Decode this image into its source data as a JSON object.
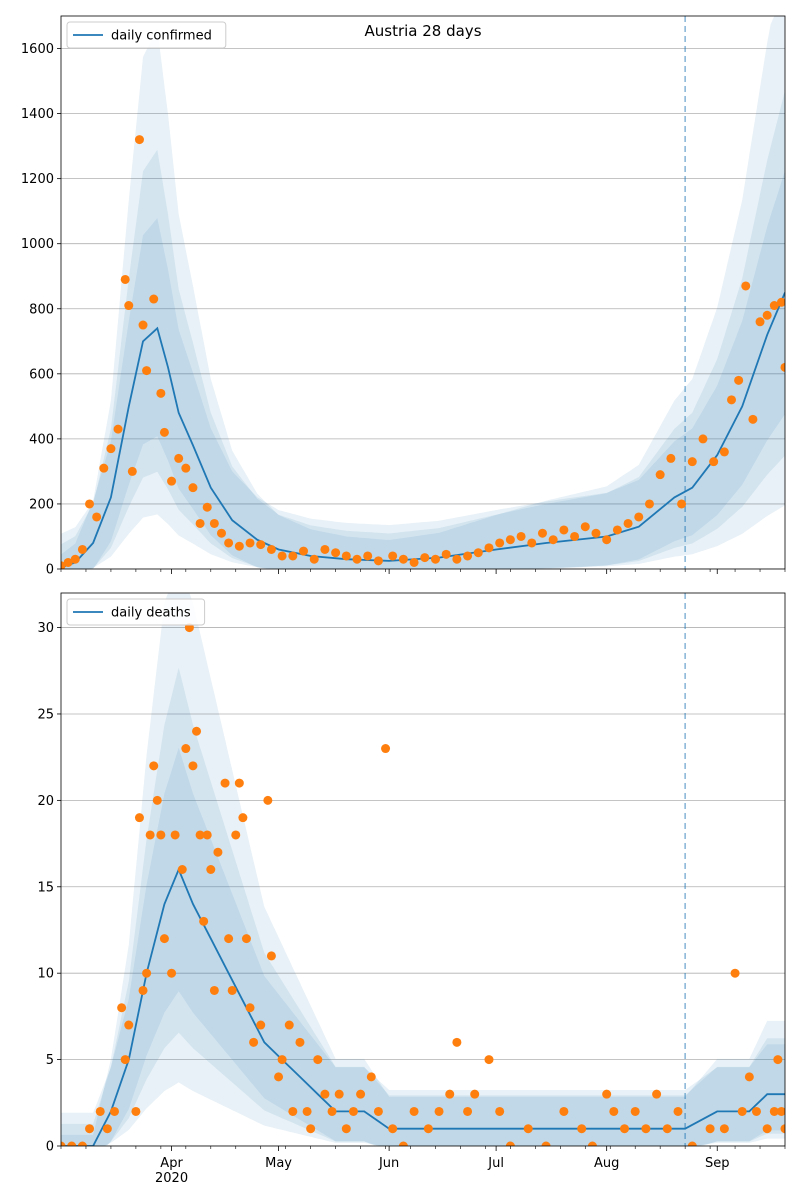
{
  "chart_data": [
    {
      "type": "line",
      "title": "Austria 28 days",
      "xlabel": "",
      "ylabel": "",
      "x_ticks": [
        "Apr\n2020",
        "May",
        "Jun",
        "Jul",
        "Aug",
        "Sep"
      ],
      "x_range": [
        "2020-03-01",
        "2020-09-20"
      ],
      "ylim": [
        0,
        1700
      ],
      "y_ticks": [
        0,
        200,
        400,
        600,
        800,
        1000,
        1200,
        1400,
        1600
      ],
      "grid": "horizontal",
      "legend_position": "top-left",
      "forecast_marker_date": "2020-08-23",
      "series": [
        {
          "name": "daily confirmed",
          "kind": "line",
          "color": "#1f77b4",
          "points": [
            [
              "2020-03-01",
              5
            ],
            [
              "2020-03-05",
              20
            ],
            [
              "2020-03-10",
              80
            ],
            [
              "2020-03-15",
              220
            ],
            [
              "2020-03-20",
              500
            ],
            [
              "2020-03-24",
              700
            ],
            [
              "2020-03-28",
              740
            ],
            [
              "2020-03-31",
              620
            ],
            [
              "2020-04-03",
              480
            ],
            [
              "2020-04-07",
              380
            ],
            [
              "2020-04-12",
              250
            ],
            [
              "2020-04-18",
              150
            ],
            [
              "2020-04-25",
              90
            ],
            [
              "2020-05-01",
              60
            ],
            [
              "2020-05-10",
              40
            ],
            [
              "2020-05-20",
              30
            ],
            [
              "2020-06-01",
              25
            ],
            [
              "2020-06-15",
              35
            ],
            [
              "2020-07-01",
              60
            ],
            [
              "2020-07-15",
              80
            ],
            [
              "2020-08-01",
              100
            ],
            [
              "2020-08-10",
              130
            ],
            [
              "2020-08-20",
              220
            ],
            [
              "2020-08-25",
              250
            ],
            [
              "2020-09-01",
              350
            ],
            [
              "2020-09-08",
              500
            ],
            [
              "2020-09-15",
              720
            ],
            [
              "2020-09-20",
              850
            ]
          ]
        },
        {
          "name": "",
          "kind": "scatter",
          "color": "#ff7f0e",
          "points": [
            [
              "2020-03-01",
              10
            ],
            [
              "2020-03-03",
              20
            ],
            [
              "2020-03-05",
              30
            ],
            [
              "2020-03-07",
              60
            ],
            [
              "2020-03-09",
              200
            ],
            [
              "2020-03-11",
              160
            ],
            [
              "2020-03-13",
              310
            ],
            [
              "2020-03-15",
              370
            ],
            [
              "2020-03-17",
              430
            ],
            [
              "2020-03-19",
              890
            ],
            [
              "2020-03-20",
              810
            ],
            [
              "2020-03-21",
              300
            ],
            [
              "2020-03-23",
              1320
            ],
            [
              "2020-03-24",
              750
            ],
            [
              "2020-03-25",
              610
            ],
            [
              "2020-03-27",
              830
            ],
            [
              "2020-03-29",
              540
            ],
            [
              "2020-03-30",
              420
            ],
            [
              "2020-04-01",
              270
            ],
            [
              "2020-04-03",
              340
            ],
            [
              "2020-04-05",
              310
            ],
            [
              "2020-04-07",
              250
            ],
            [
              "2020-04-09",
              140
            ],
            [
              "2020-04-11",
              190
            ],
            [
              "2020-04-13",
              140
            ],
            [
              "2020-04-15",
              110
            ],
            [
              "2020-04-17",
              80
            ],
            [
              "2020-04-20",
              70
            ],
            [
              "2020-04-23",
              80
            ],
            [
              "2020-04-26",
              75
            ],
            [
              "2020-04-29",
              60
            ],
            [
              "2020-05-02",
              40
            ],
            [
              "2020-05-05",
              40
            ],
            [
              "2020-05-08",
              55
            ],
            [
              "2020-05-11",
              30
            ],
            [
              "2020-05-14",
              60
            ],
            [
              "2020-05-17",
              50
            ],
            [
              "2020-05-20",
              40
            ],
            [
              "2020-05-23",
              30
            ],
            [
              "2020-05-26",
              40
            ],
            [
              "2020-05-29",
              25
            ],
            [
              "2020-06-02",
              40
            ],
            [
              "2020-06-05",
              30
            ],
            [
              "2020-06-08",
              20
            ],
            [
              "2020-06-11",
              35
            ],
            [
              "2020-06-14",
              30
            ],
            [
              "2020-06-17",
              45
            ],
            [
              "2020-06-20",
              30
            ],
            [
              "2020-06-23",
              40
            ],
            [
              "2020-06-26",
              50
            ],
            [
              "2020-06-29",
              65
            ],
            [
              "2020-07-02",
              80
            ],
            [
              "2020-07-05",
              90
            ],
            [
              "2020-07-08",
              100
            ],
            [
              "2020-07-11",
              80
            ],
            [
              "2020-07-14",
              110
            ],
            [
              "2020-07-17",
              90
            ],
            [
              "2020-07-20",
              120
            ],
            [
              "2020-07-23",
              100
            ],
            [
              "2020-07-26",
              130
            ],
            [
              "2020-07-29",
              110
            ],
            [
              "2020-08-01",
              90
            ],
            [
              "2020-08-04",
              120
            ],
            [
              "2020-08-07",
              140
            ],
            [
              "2020-08-10",
              160
            ],
            [
              "2020-08-13",
              200
            ],
            [
              "2020-08-16",
              290
            ],
            [
              "2020-08-19",
              340
            ],
            [
              "2020-08-22",
              200
            ],
            [
              "2020-08-25",
              330
            ],
            [
              "2020-08-28",
              400
            ],
            [
              "2020-08-31",
              330
            ],
            [
              "2020-09-03",
              360
            ],
            [
              "2020-09-05",
              520
            ],
            [
              "2020-09-07",
              580
            ],
            [
              "2020-09-09",
              870
            ],
            [
              "2020-09-11",
              460
            ],
            [
              "2020-09-13",
              760
            ],
            [
              "2020-09-15",
              780
            ],
            [
              "2020-09-17",
              810
            ],
            [
              "2020-09-19",
              820
            ],
            [
              "2020-09-20",
              620
            ]
          ]
        }
      ]
    },
    {
      "type": "line",
      "title": "",
      "xlabel": "",
      "ylabel": "",
      "x_ticks": [
        "Apr\n2020",
        "May",
        "Jun",
        "Jul",
        "Aug",
        "Sep"
      ],
      "x_range": [
        "2020-03-01",
        "2020-09-20"
      ],
      "ylim": [
        0,
        32
      ],
      "y_ticks": [
        0,
        5,
        10,
        15,
        20,
        25,
        30
      ],
      "grid": "horizontal",
      "legend_position": "top-left",
      "forecast_marker_date": "2020-08-23",
      "series": [
        {
          "name": "daily deaths",
          "kind": "line",
          "color": "#1f77b4",
          "points": [
            [
              "2020-03-01",
              0
            ],
            [
              "2020-03-10",
              0
            ],
            [
              "2020-03-15",
              2
            ],
            [
              "2020-03-20",
              5
            ],
            [
              "2020-03-25",
              10
            ],
            [
              "2020-03-30",
              14
            ],
            [
              "2020-04-03",
              16
            ],
            [
              "2020-04-07",
              14
            ],
            [
              "2020-04-12",
              12
            ],
            [
              "2020-04-17",
              10
            ],
            [
              "2020-04-22",
              8
            ],
            [
              "2020-04-27",
              6
            ],
            [
              "2020-05-02",
              5
            ],
            [
              "2020-05-07",
              4
            ],
            [
              "2020-05-12",
              3
            ],
            [
              "2020-05-17",
              2
            ],
            [
              "2020-05-25",
              2
            ],
            [
              "2020-06-01",
              1
            ],
            [
              "2020-06-15",
              1
            ],
            [
              "2020-07-01",
              1
            ],
            [
              "2020-07-15",
              1
            ],
            [
              "2020-08-01",
              1
            ],
            [
              "2020-08-15",
              1
            ],
            [
              "2020-08-23",
              1
            ],
            [
              "2020-09-01",
              2
            ],
            [
              "2020-09-10",
              2
            ],
            [
              "2020-09-15",
              3
            ],
            [
              "2020-09-20",
              3
            ]
          ]
        },
        {
          "name": "",
          "kind": "scatter",
          "color": "#ff7f0e",
          "points": [
            [
              "2020-03-01",
              0
            ],
            [
              "2020-03-04",
              0
            ],
            [
              "2020-03-07",
              0
            ],
            [
              "2020-03-09",
              1
            ],
            [
              "2020-03-12",
              2
            ],
            [
              "2020-03-14",
              1
            ],
            [
              "2020-03-16",
              2
            ],
            [
              "2020-03-18",
              8
            ],
            [
              "2020-03-19",
              5
            ],
            [
              "2020-03-20",
              7
            ],
            [
              "2020-03-22",
              2
            ],
            [
              "2020-03-23",
              19
            ],
            [
              "2020-03-24",
              9
            ],
            [
              "2020-03-25",
              10
            ],
            [
              "2020-03-26",
              18
            ],
            [
              "2020-03-27",
              22
            ],
            [
              "2020-03-28",
              20
            ],
            [
              "2020-03-29",
              18
            ],
            [
              "2020-03-30",
              12
            ],
            [
              "2020-04-01",
              10
            ],
            [
              "2020-04-02",
              18
            ],
            [
              "2020-04-04",
              16
            ],
            [
              "2020-04-05",
              23
            ],
            [
              "2020-04-06",
              30
            ],
            [
              "2020-04-07",
              22
            ],
            [
              "2020-04-08",
              24
            ],
            [
              "2020-04-09",
              18
            ],
            [
              "2020-04-10",
              13
            ],
            [
              "2020-04-11",
              18
            ],
            [
              "2020-04-12",
              16
            ],
            [
              "2020-04-13",
              9
            ],
            [
              "2020-04-14",
              17
            ],
            [
              "2020-04-16",
              21
            ],
            [
              "2020-04-17",
              12
            ],
            [
              "2020-04-18",
              9
            ],
            [
              "2020-04-19",
              18
            ],
            [
              "2020-04-20",
              21
            ],
            [
              "2020-04-21",
              19
            ],
            [
              "2020-04-22",
              12
            ],
            [
              "2020-04-23",
              8
            ],
            [
              "2020-04-24",
              6
            ],
            [
              "2020-04-26",
              7
            ],
            [
              "2020-04-28",
              20
            ],
            [
              "2020-04-29",
              11
            ],
            [
              "2020-05-01",
              4
            ],
            [
              "2020-05-02",
              5
            ],
            [
              "2020-05-04",
              7
            ],
            [
              "2020-05-05",
              2
            ],
            [
              "2020-05-07",
              6
            ],
            [
              "2020-05-09",
              2
            ],
            [
              "2020-05-10",
              1
            ],
            [
              "2020-05-12",
              5
            ],
            [
              "2020-05-14",
              3
            ],
            [
              "2020-05-16",
              2
            ],
            [
              "2020-05-18",
              3
            ],
            [
              "2020-05-20",
              1
            ],
            [
              "2020-05-22",
              2
            ],
            [
              "2020-05-24",
              3
            ],
            [
              "2020-05-27",
              4
            ],
            [
              "2020-05-29",
              2
            ],
            [
              "2020-05-31",
              23
            ],
            [
              "2020-06-02",
              1
            ],
            [
              "2020-06-05",
              0
            ],
            [
              "2020-06-08",
              2
            ],
            [
              "2020-06-12",
              1
            ],
            [
              "2020-06-15",
              2
            ],
            [
              "2020-06-18",
              3
            ],
            [
              "2020-06-20",
              6
            ],
            [
              "2020-06-23",
              2
            ],
            [
              "2020-06-25",
              3
            ],
            [
              "2020-06-29",
              5
            ],
            [
              "2020-07-02",
              2
            ],
            [
              "2020-07-05",
              0
            ],
            [
              "2020-07-10",
              1
            ],
            [
              "2020-07-15",
              0
            ],
            [
              "2020-07-20",
              2
            ],
            [
              "2020-07-25",
              1
            ],
            [
              "2020-07-28",
              0
            ],
            [
              "2020-08-01",
              3
            ],
            [
              "2020-08-03",
              2
            ],
            [
              "2020-08-06",
              1
            ],
            [
              "2020-08-09",
              2
            ],
            [
              "2020-08-12",
              1
            ],
            [
              "2020-08-15",
              3
            ],
            [
              "2020-08-18",
              1
            ],
            [
              "2020-08-21",
              2
            ],
            [
              "2020-08-25",
              0
            ],
            [
              "2020-08-30",
              1
            ],
            [
              "2020-09-03",
              1
            ],
            [
              "2020-09-06",
              10
            ],
            [
              "2020-09-08",
              2
            ],
            [
              "2020-09-10",
              4
            ],
            [
              "2020-09-12",
              2
            ],
            [
              "2020-09-15",
              1
            ],
            [
              "2020-09-17",
              2
            ],
            [
              "2020-09-18",
              5
            ],
            [
              "2020-09-19",
              2
            ],
            [
              "2020-09-20",
              1
            ]
          ]
        }
      ]
    }
  ]
}
